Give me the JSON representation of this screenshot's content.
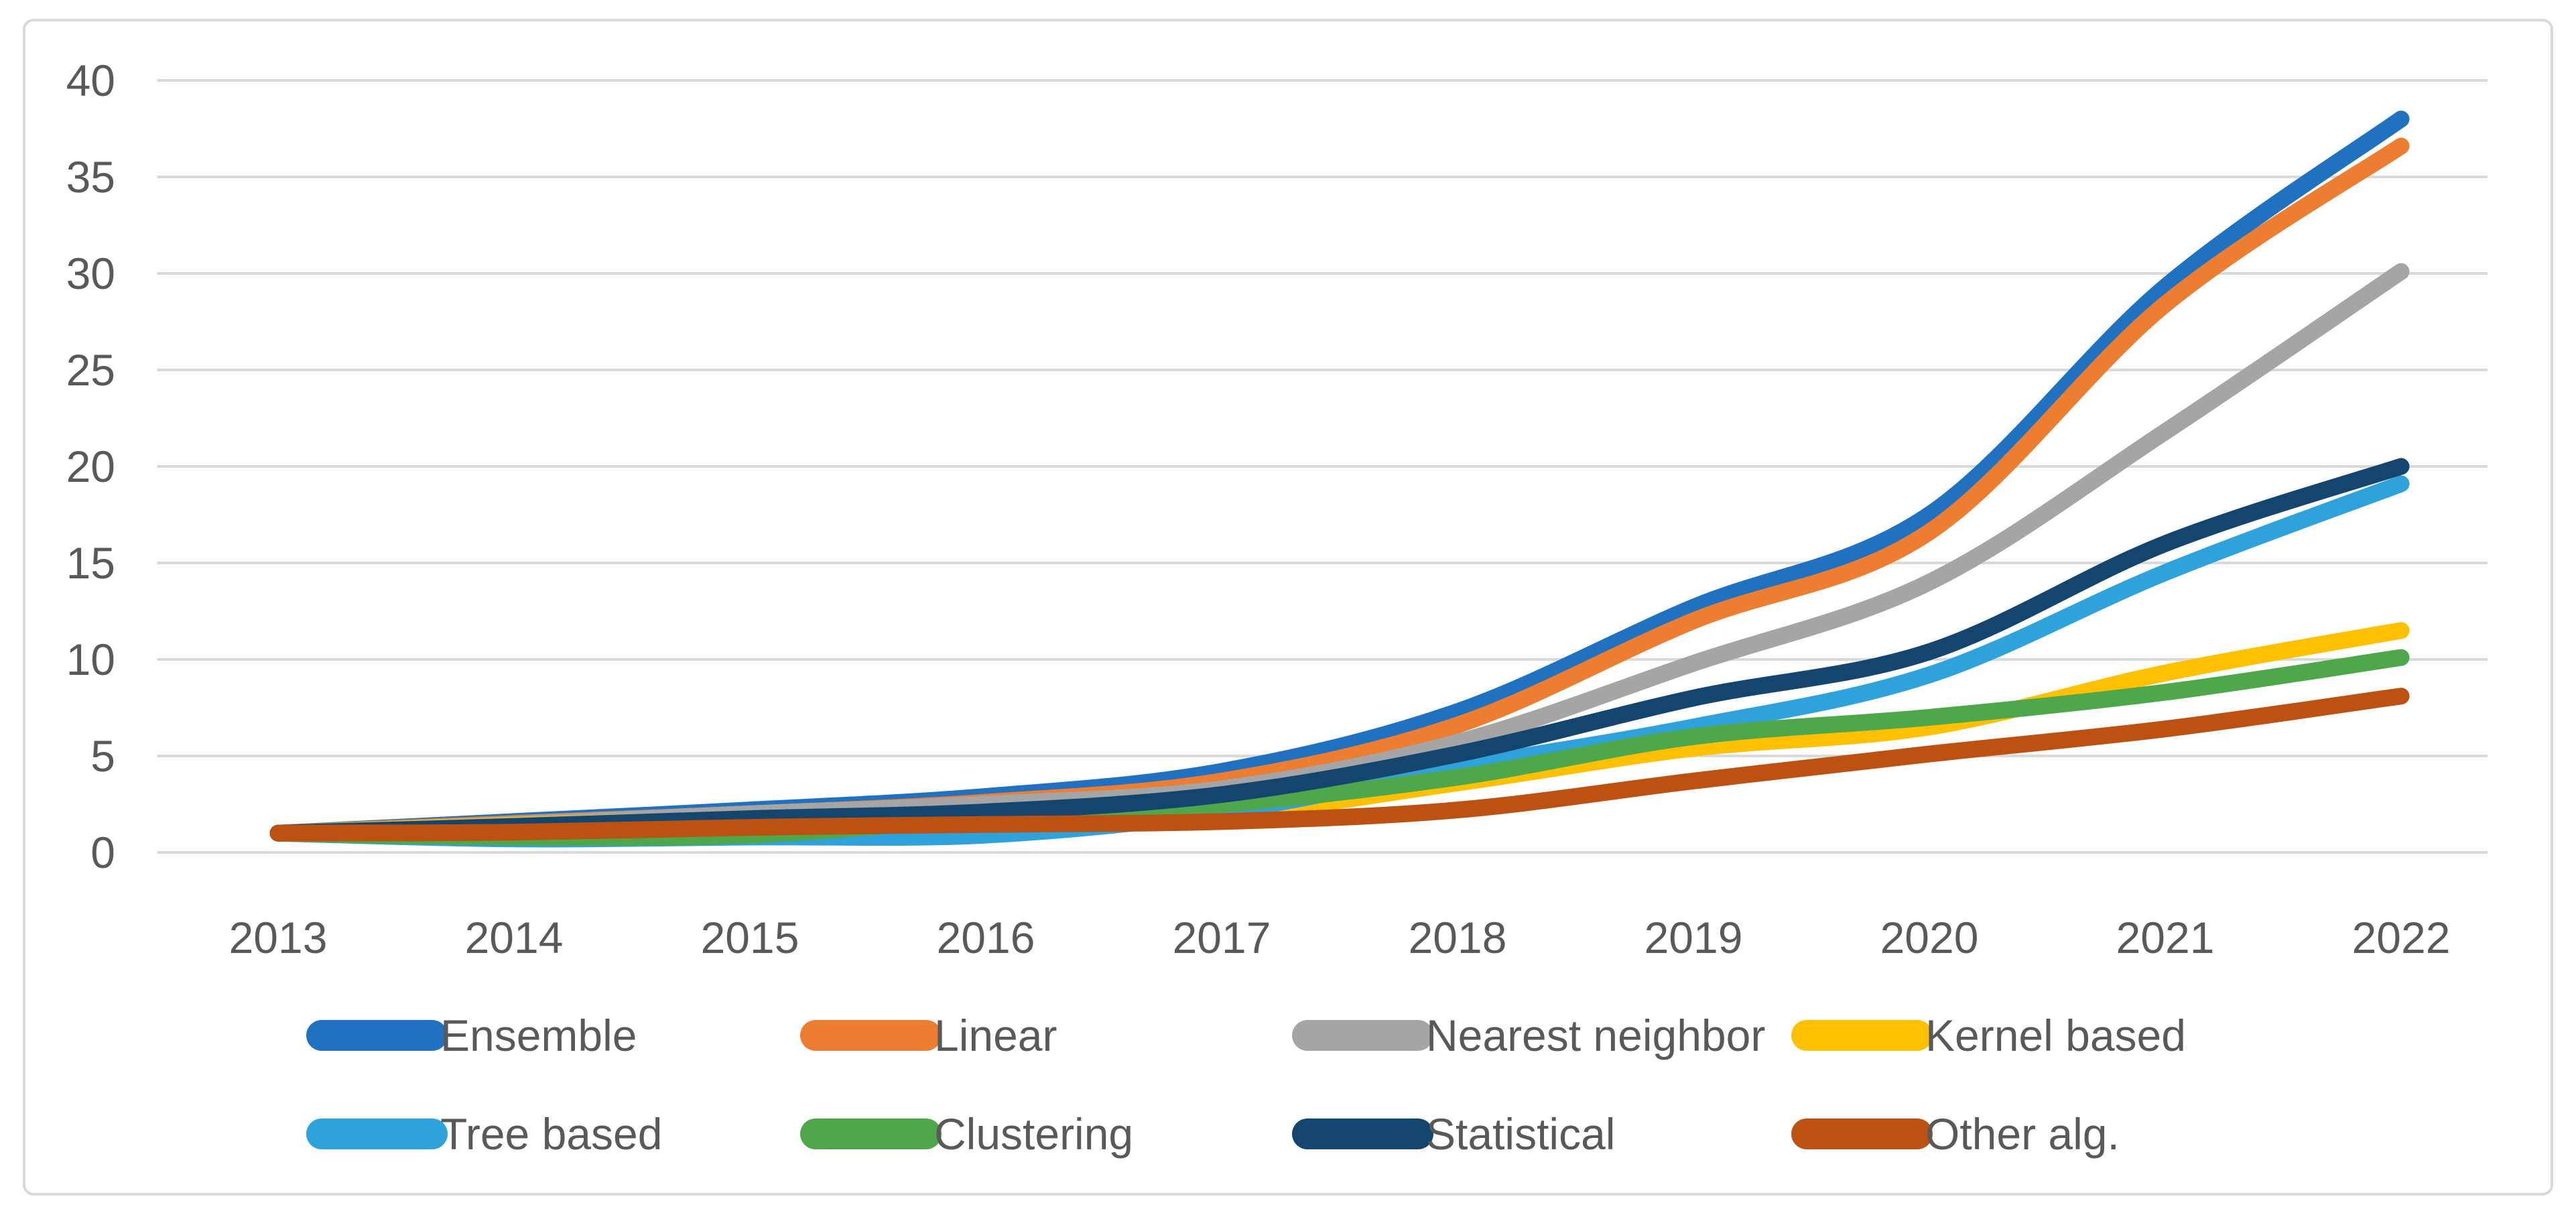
{
  "figure": {
    "background": "#FFFFFF",
    "border_color": "#D9D9D9",
    "grid_color": "#D9D9D9",
    "text_color": "#595959"
  },
  "chart_data": {
    "type": "line",
    "smoothed": true,
    "title": "",
    "xlabel": "",
    "ylabel": "",
    "x": [
      2013,
      2014,
      2015,
      2016,
      2017,
      2018,
      2019,
      2020,
      2021,
      2022
    ],
    "x_tick_labels": [
      "2013",
      "2014",
      "2015",
      "2016",
      "2017",
      "2018",
      "2019",
      "2020",
      "2021",
      "2022"
    ],
    "ylim": [
      0,
      40
    ],
    "yticks": [
      0,
      5,
      10,
      15,
      20,
      25,
      30,
      35,
      40
    ],
    "y_tick_labels": [
      "0",
      "5",
      "10",
      "15",
      "20",
      "25",
      "30",
      "35",
      "40"
    ],
    "grid": "horizontal",
    "legend_position": "bottom",
    "legend_rows": 2,
    "legend_columns": 4,
    "series": [
      {
        "name": "Ensemble",
        "color": "#2171C1",
        "values": [
          1,
          1.6,
          2.2,
          2.9,
          4.2,
          7.3,
          12.7,
          17.5,
          29.3,
          38.0
        ]
      },
      {
        "name": "Linear",
        "color": "#ED7D31",
        "values": [
          1,
          1.5,
          2.0,
          2.6,
          3.7,
          6.6,
          12.0,
          16.6,
          28.4,
          36.6
        ]
      },
      {
        "name": "Nearest neighbor",
        "color": "#A5A5A5",
        "values": [
          1,
          1.45,
          2.0,
          2.5,
          3.3,
          5.7,
          9.8,
          14.0,
          21.8,
          30.1
        ]
      },
      {
        "name": "Kernel based",
        "color": "#FFC000",
        "values": [
          1,
          1.4,
          1.7,
          1.9,
          2.0,
          3.6,
          5.4,
          6.5,
          9.3,
          11.5
        ]
      },
      {
        "name": "Tree based",
        "color": "#2FA2DB",
        "values": [
          1,
          0.7,
          0.8,
          0.9,
          2.1,
          4.4,
          6.5,
          9.2,
          14.5,
          19.1
        ]
      },
      {
        "name": "Clustering",
        "color": "#4EA74A",
        "values": [
          1,
          0.8,
          0.9,
          1.8,
          2.5,
          3.9,
          6.0,
          7.0,
          8.3,
          10.1
        ]
      },
      {
        "name": "Statistical",
        "color": "#14456F",
        "values": [
          1,
          1.35,
          1.75,
          2.1,
          3.0,
          5.1,
          8.0,
          10.4,
          16.0,
          20.0
        ]
      },
      {
        "name": "Other alg.",
        "color": "#BC5111",
        "values": [
          1,
          1.05,
          1.3,
          1.45,
          1.6,
          2.2,
          3.7,
          5.1,
          6.4,
          8.1
        ]
      }
    ]
  }
}
